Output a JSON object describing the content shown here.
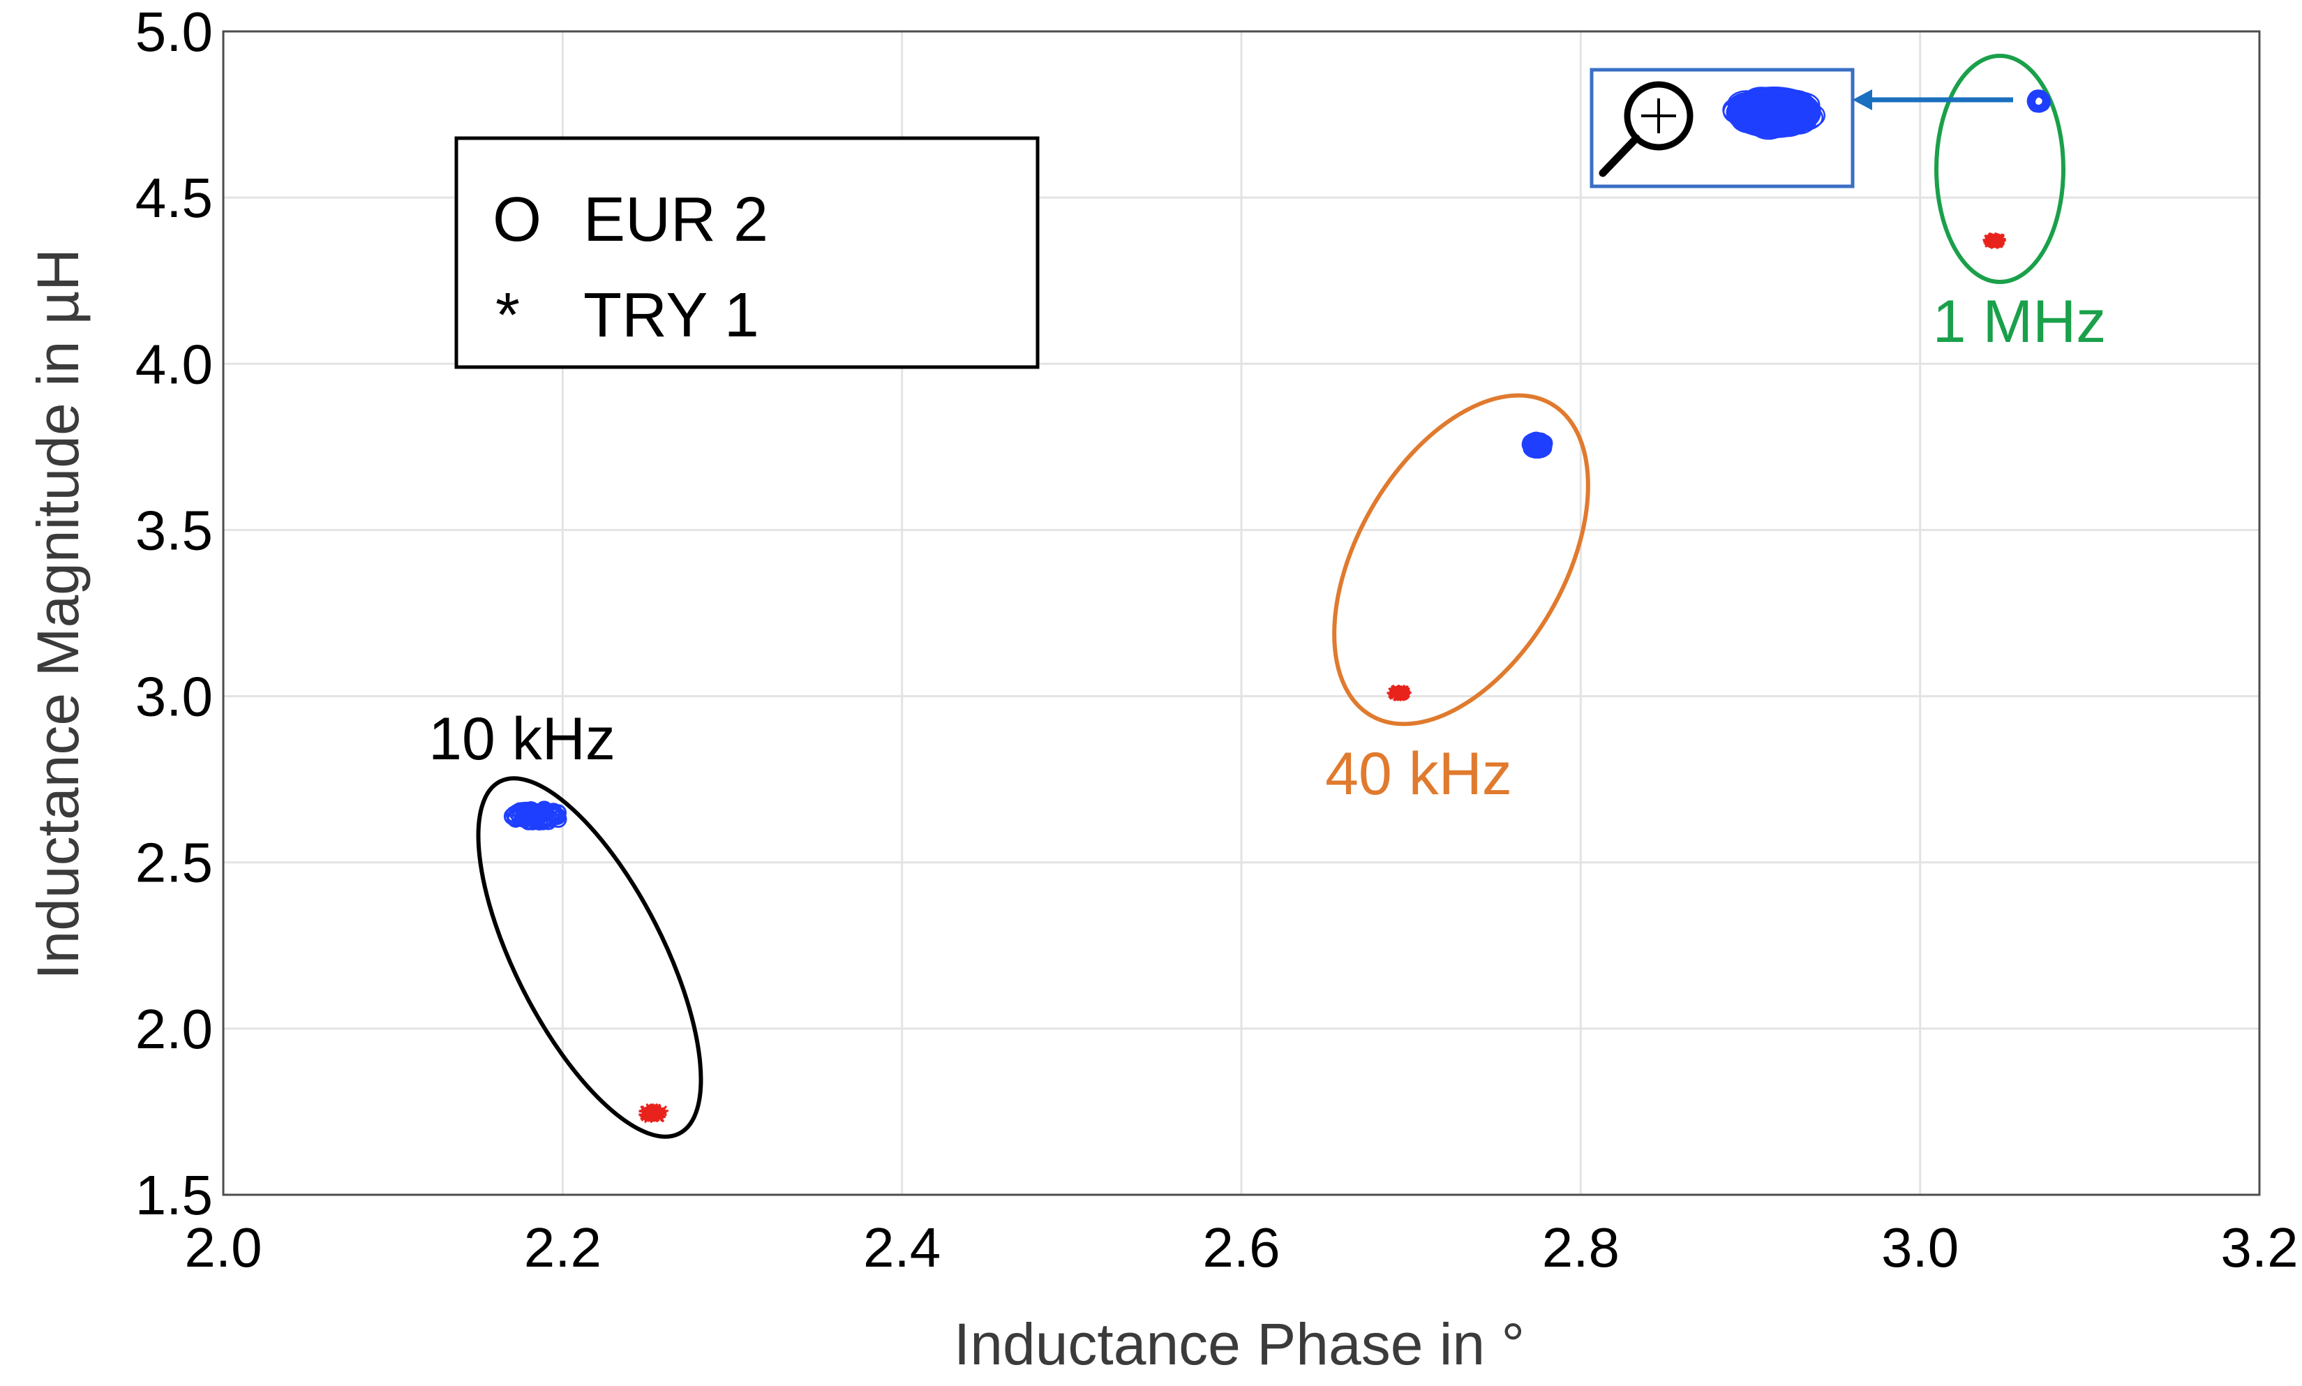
{
  "chart_data": {
    "type": "scatter",
    "title": "",
    "xlabel": "Inductance Phase in °",
    "ylabel": "Inductance Magnitude in µH",
    "xlim": [
      2.0,
      3.2
    ],
    "ylim": [
      1.5,
      5.0
    ],
    "x_ticks": [
      "2.0",
      "2.2",
      "2.4",
      "2.6",
      "2.8",
      "3.0",
      "3.2"
    ],
    "y_ticks": [
      "1.5",
      "2.0",
      "2.5",
      "3.0",
      "3.5",
      "4.0",
      "4.5",
      "5.0"
    ],
    "grid": true,
    "legend": {
      "position": "top-left",
      "entries": [
        {
          "symbol": "O",
          "label": "EUR 2",
          "color": "#4a6fc9"
        },
        {
          "symbol": "*",
          "label": "TRY 1",
          "color": "#e8231c"
        }
      ]
    },
    "series": [
      {
        "name": "EUR 2",
        "marker": "circle",
        "color": "#1f3fff",
        "clusters": [
          {
            "frequency": "10 kHz",
            "x_min": 2.17,
            "x_max": 2.2,
            "y_min": 2.62,
            "y_max": 2.66
          },
          {
            "frequency": "40 kHz",
            "x_min": 2.77,
            "x_max": 2.779,
            "y_min": 3.74,
            "y_max": 3.77
          },
          {
            "frequency": "1 MHz",
            "x_min": 3.068,
            "x_max": 3.072,
            "y_min": 4.78,
            "y_max": 4.8
          }
        ]
      },
      {
        "name": "TRY 1",
        "marker": "asterisk",
        "color": "#e8231c",
        "clusters": [
          {
            "frequency": "10 kHz",
            "x_min": 2.247,
            "x_max": 2.26,
            "y_min": 1.73,
            "y_max": 1.76
          },
          {
            "frequency": "40 kHz",
            "x_min": 2.689,
            "x_max": 2.697,
            "y_min": 3.0,
            "y_max": 3.02
          },
          {
            "frequency": "1 MHz",
            "x_min": 3.04,
            "x_max": 3.048,
            "y_min": 4.36,
            "y_max": 4.38
          }
        ]
      }
    ],
    "annotations": [
      {
        "label": "10 kHz",
        "color": "#000000"
      },
      {
        "label": "40 kHz",
        "color": "#e07a2e"
      },
      {
        "label": "1 MHz",
        "color": "#1aa04a"
      }
    ],
    "inset": {
      "description": "zoomed view of the EUR 2 cluster at 1 MHz",
      "icon": "magnifier-plus-icon",
      "frame_color": "#3a6fc4",
      "arrow_color": "#1a6fbf"
    }
  }
}
